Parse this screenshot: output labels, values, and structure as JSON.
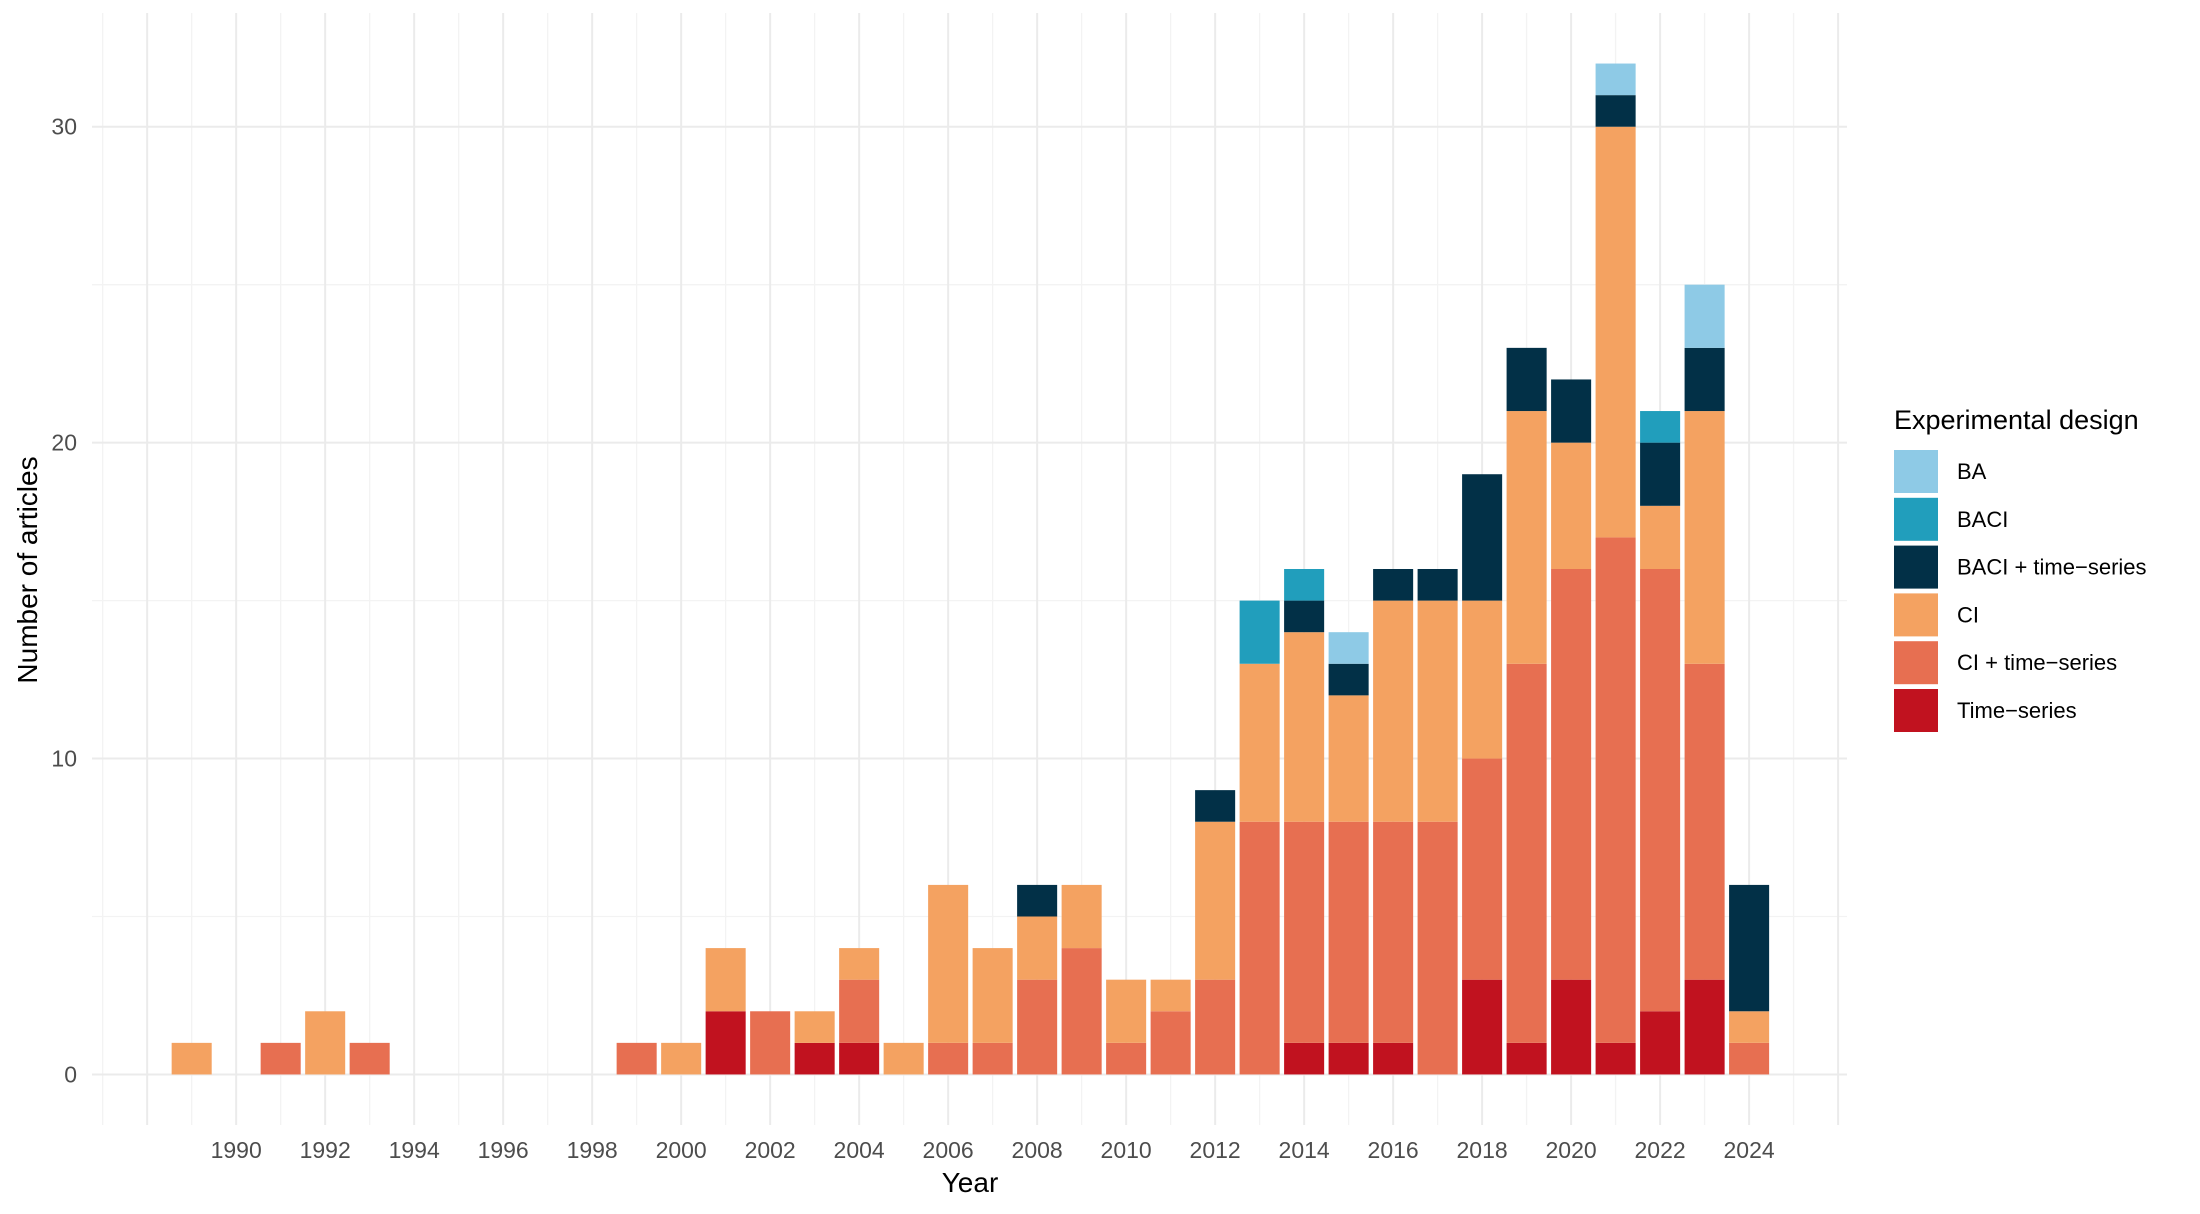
{
  "chart_data": {
    "type": "bar",
    "stacked": true,
    "title": "",
    "xlabel": "Year",
    "ylabel": "Number of articles",
    "xlim": [
      1986.76,
      2026.2
    ],
    "ylim": [
      -1.6,
      33.6
    ],
    "grid": true,
    "x_ticks": [
      1990,
      1992,
      1994,
      1996,
      1998,
      2000,
      2002,
      2004,
      2006,
      2008,
      2010,
      2012,
      2014,
      2016,
      2018,
      2020,
      2022,
      2024
    ],
    "y_ticks": [
      0,
      10,
      20,
      30
    ],
    "legend": {
      "title": "Experimental design",
      "position": "right"
    },
    "categories": [
      1989,
      1990,
      1991,
      1992,
      1993,
      1994,
      1995,
      1996,
      1997,
      1998,
      1999,
      2000,
      2001,
      2002,
      2003,
      2004,
      2005,
      2006,
      2007,
      2008,
      2009,
      2010,
      2011,
      2012,
      2013,
      2014,
      2015,
      2016,
      2017,
      2018,
      2019,
      2020,
      2021,
      2022,
      2023,
      2024
    ],
    "series": [
      {
        "name": "BA",
        "color": "#8ecae6",
        "values": [
          0,
          0,
          0,
          0,
          0,
          0,
          0,
          0,
          0,
          0,
          0,
          0,
          0,
          0,
          0,
          0,
          0,
          0,
          0,
          0,
          0,
          0,
          0,
          0,
          0,
          0,
          1,
          0,
          0,
          0,
          0,
          0,
          1,
          0,
          2,
          0
        ]
      },
      {
        "name": "BACI",
        "color": "#219ebc",
        "values": [
          0,
          0,
          0,
          0,
          0,
          0,
          0,
          0,
          0,
          0,
          0,
          0,
          0,
          0,
          0,
          0,
          0,
          0,
          0,
          0,
          0,
          0,
          0,
          0,
          2,
          1,
          0,
          0,
          0,
          0,
          0,
          0,
          0,
          1,
          0,
          0
        ]
      },
      {
        "name": "BACI + time−series",
        "color": "#023047",
        "values": [
          0,
          0,
          0,
          0,
          0,
          0,
          0,
          0,
          0,
          0,
          0,
          0,
          0,
          0,
          0,
          0,
          0,
          0,
          0,
          1,
          0,
          0,
          0,
          1,
          0,
          1,
          1,
          1,
          1,
          4,
          2,
          2,
          1,
          2,
          2,
          4
        ]
      },
      {
        "name": "CI",
        "color": "#f4a261",
        "values": [
          1,
          0,
          0,
          2,
          0,
          0,
          0,
          0,
          0,
          0,
          0,
          1,
          2,
          0,
          1,
          1,
          1,
          5,
          3,
          2,
          2,
          2,
          1,
          5,
          5,
          6,
          4,
          7,
          7,
          5,
          8,
          4,
          13,
          2,
          8,
          1
        ]
      },
      {
        "name": "CI + time−series",
        "color": "#e76f51",
        "values": [
          0,
          0,
          1,
          0,
          1,
          0,
          0,
          0,
          0,
          0,
          1,
          0,
          0,
          2,
          0,
          2,
          0,
          1,
          1,
          3,
          4,
          1,
          2,
          3,
          8,
          7,
          7,
          7,
          8,
          7,
          12,
          13,
          16,
          14,
          10,
          1
        ]
      },
      {
        "name": "Time−series",
        "color": "#c1121f",
        "values": [
          0,
          0,
          0,
          0,
          0,
          0,
          0,
          0,
          0,
          0,
          0,
          0,
          2,
          0,
          1,
          1,
          0,
          0,
          0,
          0,
          0,
          0,
          0,
          0,
          0,
          1,
          1,
          1,
          0,
          3,
          1,
          3,
          1,
          2,
          3,
          0
        ]
      }
    ]
  }
}
